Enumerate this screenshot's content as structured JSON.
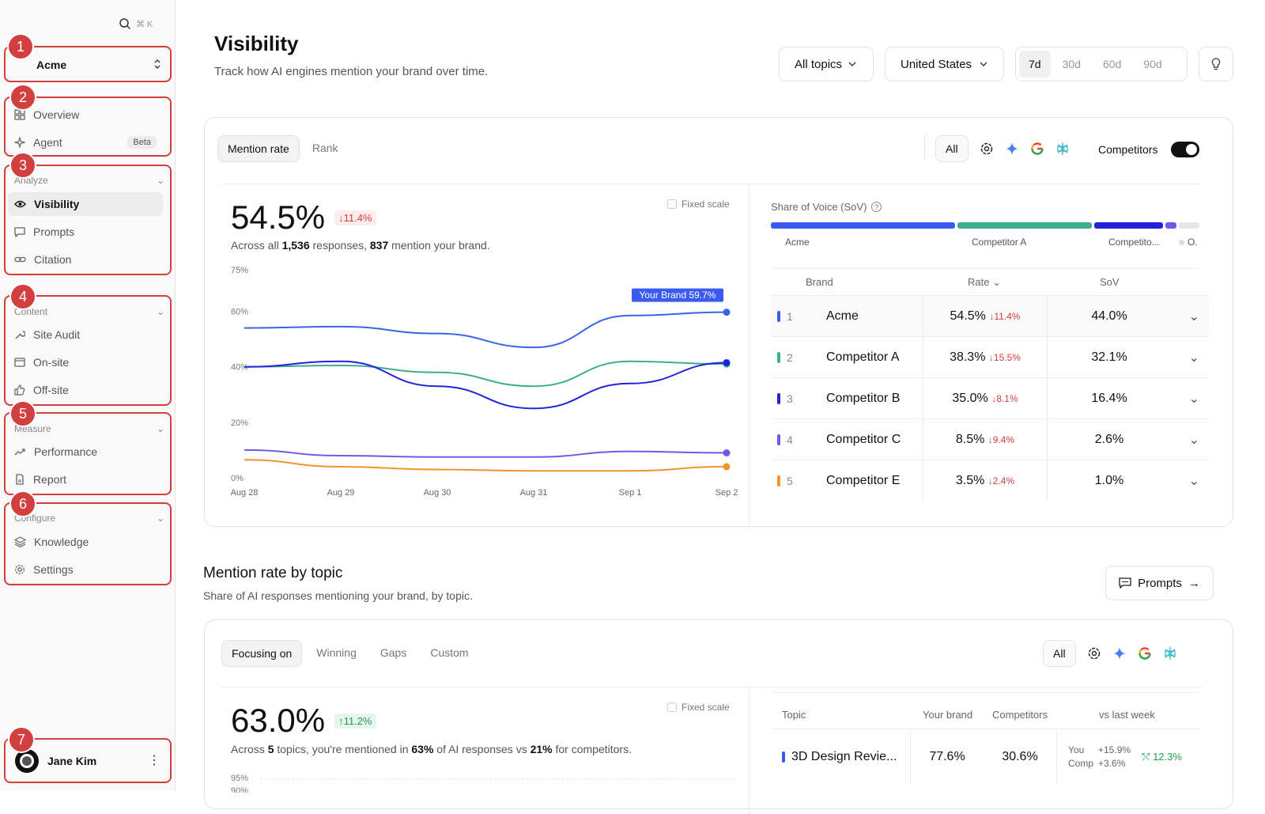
{
  "sidebar": {
    "search_shortcut": "⌘ K",
    "workspace": "Acme",
    "general": [
      {
        "label": "Overview",
        "icon": "grid-icon"
      },
      {
        "label": "Agent",
        "icon": "sparkle-icon",
        "badge": "Beta"
      }
    ],
    "analyze": {
      "title": "Analyze",
      "items": [
        "Visibility",
        "Prompts",
        "Citation"
      ]
    },
    "content": {
      "title": "Content",
      "items": [
        "Site Audit",
        "On-site",
        "Off-site"
      ]
    },
    "measure": {
      "title": "Measure",
      "items": [
        "Performance",
        "Report"
      ]
    },
    "configure": {
      "title": "Configure",
      "items": [
        "Knowledge",
        "Settings"
      ]
    },
    "user": "Jane Kim",
    "badges": [
      "1",
      "2",
      "3",
      "4",
      "5",
      "6",
      "7"
    ]
  },
  "header": {
    "title": "Visibility",
    "subtitle": "Track how AI engines mention your brand over time.",
    "topic_filter": "All topics",
    "region_filter": "United States",
    "ranges": [
      "7d",
      "30d",
      "60d",
      "90d"
    ],
    "selected_range": "7d"
  },
  "visibility_card": {
    "tabs": [
      "Mention rate",
      "Rank"
    ],
    "engine_all": "All",
    "competitors_label": "Competitors",
    "big_value": "54.5%",
    "delta": "↓11.4%",
    "desc_pre": "Across all ",
    "desc_responses": "1,536",
    "desc_mid": " responses, ",
    "desc_mentions": "837",
    "desc_post": " mention your brand.",
    "fixed_scale": "Fixed scale",
    "sov_title": "Share of Voice (SoV)",
    "sov_labels": [
      "Acme",
      "Competitor A",
      "Competito...",
      "O."
    ],
    "table_headers": [
      "Brand",
      "Rate",
      "SoV"
    ],
    "rows": [
      {
        "rank": "1",
        "brand": "Acme",
        "rate": "54.5%",
        "delta": "11.4%",
        "sov": "44.0%",
        "color": "#3b5bf0"
      },
      {
        "rank": "2",
        "brand": "Competitor A",
        "rate": "38.3%",
        "delta": "15.5%",
        "sov": "32.1%",
        "color": "#3fae8e"
      },
      {
        "rank": "3",
        "brand": "Competitor B",
        "rate": "35.0%",
        "delta": "8.1%",
        "sov": "16.4%",
        "color": "#2222dd"
      },
      {
        "rank": "4",
        "brand": "Competitor C",
        "rate": "8.5%",
        "delta": "9.4%",
        "sov": "2.6%",
        "color": "#6b5be8"
      },
      {
        "rank": "5",
        "brand": "Competitor E",
        "rate": "3.5%",
        "delta": "2.4%",
        "sov": "1.0%",
        "color": "#f0952e"
      }
    ]
  },
  "chart_data": {
    "type": "line",
    "x": [
      "Aug 28",
      "Aug 29",
      "Aug 30",
      "Aug 31",
      "Sep 1",
      "Sep 2"
    ],
    "y_ticks": [
      "75%",
      "60%",
      "40%",
      "20%",
      "0%"
    ],
    "ylim": [
      0,
      75
    ],
    "annotation": "Your Brand 59.7%",
    "series": [
      {
        "name": "Acme",
        "color": "#3b63e8",
        "values": [
          54,
          54.5,
          52,
          47,
          58.5,
          59.7
        ]
      },
      {
        "name": "Competitor A",
        "color": "#3fae8e",
        "values": [
          40,
          40.5,
          38,
          33,
          42,
          41
        ]
      },
      {
        "name": "Competitor B",
        "color": "#2222dd",
        "values": [
          40,
          42,
          33,
          25,
          34,
          41.5
        ]
      },
      {
        "name": "Competitor C",
        "color": "#6b5be8",
        "values": [
          10,
          8,
          7.5,
          7.5,
          9.5,
          9
        ]
      },
      {
        "name": "Competitor E",
        "color": "#f0952e",
        "values": [
          6.5,
          4,
          3,
          2.5,
          2.5,
          4
        ]
      }
    ]
  },
  "topic_section": {
    "title": "Mention rate by topic",
    "subtitle": "Share of AI responses mentioning your brand, by topic.",
    "prompts_button": "Prompts",
    "tabs": [
      "Focusing on",
      "Winning",
      "Gaps",
      "Custom"
    ],
    "engine_all": "All",
    "big_value": "63.0%",
    "delta": "↑11.2%",
    "desc_pre": "Across ",
    "desc_topics": "5",
    "desc_mid": " topics, you're mentioned in ",
    "desc_pct": "63%",
    "desc_mid2": " of AI responses vs ",
    "desc_comp": "21%",
    "desc_post": " for competitors.",
    "fixed_scale": "Fixed scale",
    "y_top": "95%",
    "y_next": "90%",
    "headers": [
      "Topic",
      "Your brand",
      "Competitors",
      "vs last week"
    ],
    "row": {
      "topic": "3D Design Revie...",
      "brand": "77.6%",
      "comp": "30.6%",
      "you_label": "You",
      "you_val": "+15.9%",
      "comp_label": "Comp",
      "comp_val": "+3.6%",
      "vs": "12.3%"
    }
  }
}
